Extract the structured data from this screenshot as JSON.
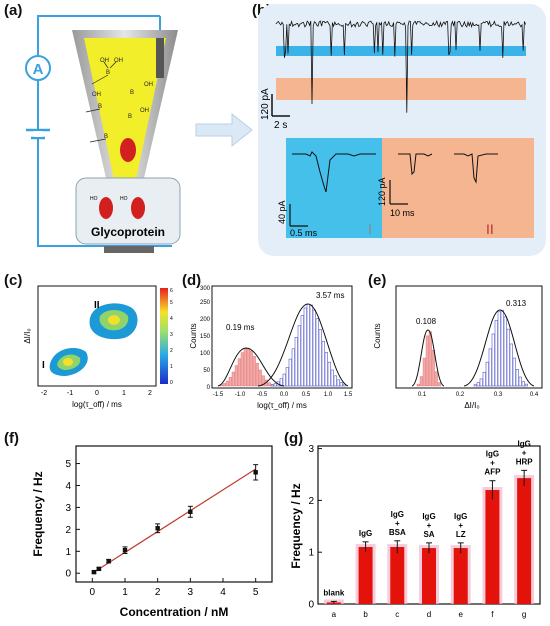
{
  "panels": {
    "a": {
      "label": "(a)",
      "ammeter": "A",
      "molecule": "Glycoprotein",
      "oh": "OH",
      "b": "B",
      "ho": "HO"
    },
    "b": {
      "label": "(b)",
      "current_scale": "120 pA",
      "time_scale": "2 s",
      "inset1": {
        "current": "40 pA",
        "time": "0.5 ms",
        "roman": "I"
      },
      "inset2": {
        "current": "120 pA",
        "time": "10 ms",
        "roman": "II"
      }
    },
    "c": {
      "label": "(c)",
      "ylabel": "ΔI/I₀",
      "xlabel": "log(τ_off) / ms",
      "cluster1": "I",
      "cluster2": "II",
      "xticks": [
        "-2",
        "-1",
        "0",
        "1",
        "2"
      ],
      "cbar_ticks": [
        "0",
        "1",
        "2",
        "3",
        "4",
        "5",
        "6"
      ]
    },
    "d": {
      "label": "(d)",
      "peak1": "0.19 ms",
      "peak2": "3.57 ms",
      "ylabel": "Counts",
      "xlabel": "log(τ_off) / ms",
      "xticks": [
        "-1.5",
        "-1.0",
        "-0.5",
        "0.0",
        "0.5",
        "1.0",
        "1.5"
      ],
      "yticks": [
        "0",
        "50",
        "100",
        "150",
        "200",
        "250",
        "300"
      ]
    },
    "e": {
      "label": "(e)",
      "peak1": "0.108",
      "peak2": "0.313",
      "ylabel": "Counts",
      "xlabel": "ΔI/I₀",
      "xticks": [
        "0.1",
        "0.2",
        "0.3",
        "0.4"
      ]
    },
    "f": {
      "label": "(f)"
    },
    "g": {
      "label": "(g)"
    }
  },
  "chart_data": [
    {
      "type": "scatter",
      "id": "f",
      "xlabel": "Concentration / nM",
      "ylabel": "Frequency / Hz",
      "xticks": [
        "0",
        "1",
        "2",
        "3",
        "4",
        "5"
      ],
      "yticks": [
        "0",
        "1",
        "2",
        "3",
        "4",
        "5"
      ],
      "xlim": [
        -0.5,
        5.5
      ],
      "ylim": [
        -0.4,
        5.8
      ],
      "x": [
        0.05,
        0.2,
        0.5,
        1.0,
        2.0,
        3.0,
        5.0
      ],
      "y": [
        0.05,
        0.2,
        0.55,
        1.05,
        2.05,
        2.8,
        4.6
      ],
      "err": [
        0.05,
        0.05,
        0.08,
        0.15,
        0.2,
        0.25,
        0.35
      ],
      "fit": [
        [
          0.0,
          0.0
        ],
        [
          5.0,
          4.75
        ]
      ],
      "colors": {
        "fit": "#c0392b",
        "points": "#111111"
      }
    },
    {
      "type": "bar",
      "id": "g",
      "ylabel": "Frequency / Hz",
      "categories": [
        "a",
        "b",
        "c",
        "d",
        "e",
        "f",
        "g"
      ],
      "bar_labels": [
        "blank",
        "IgG",
        "IgG\n+\nBSA",
        "IgG\n+\nSA",
        "IgG\n+\nLZ",
        "IgG\n+\nAFP",
        "IgG\n+\nHRP"
      ],
      "values": [
        0.03,
        1.1,
        1.1,
        1.08,
        1.08,
        2.2,
        2.43
      ],
      "err": [
        0.02,
        0.1,
        0.12,
        0.1,
        0.1,
        0.18,
        0.15
      ],
      "yticks": [
        "0",
        "1",
        "2",
        "3"
      ],
      "ylim": [
        0,
        3.05
      ],
      "colors": {
        "bar": "#e3120b",
        "shadow": "#f2b8cc"
      }
    }
  ]
}
